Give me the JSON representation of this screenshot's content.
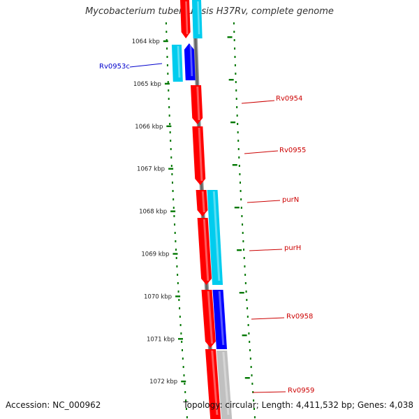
{
  "title": "Mycobacterium tuberculosis H37Rv, complete genome",
  "footer": {
    "accession": "Accession: NC_000962",
    "summary": "Topology: circular; Length: 4,411,532 bp; Genes: 4,038"
  },
  "colors": {
    "forward_cds": "#ff0000",
    "reverse_cds": "#0000ff",
    "forward_shadow": "#00ccee",
    "reverse_shadow": "#00ccee",
    "backbone": "#777777",
    "tick": "#007700",
    "label_forward": "#cc0000",
    "label_reverse": "#0000cc"
  },
  "ticks": [
    "1064 kbp",
    "1065 kbp",
    "1066 kbp",
    "1067 kbp",
    "1068 kbp",
    "1069 kbp",
    "1070 kbp",
    "1071 kbp",
    "1072 kbp"
  ],
  "labels": [
    {
      "text": "Rv0953c",
      "strand": "reverse"
    },
    {
      "text": "Rv0954",
      "strand": "forward"
    },
    {
      "text": "Rv0955",
      "strand": "forward"
    },
    {
      "text": "purN",
      "strand": "forward"
    },
    {
      "text": "purH",
      "strand": "forward"
    },
    {
      "text": "Rv0958",
      "strand": "forward"
    },
    {
      "text": "Rv0959",
      "strand": "forward"
    }
  ]
}
